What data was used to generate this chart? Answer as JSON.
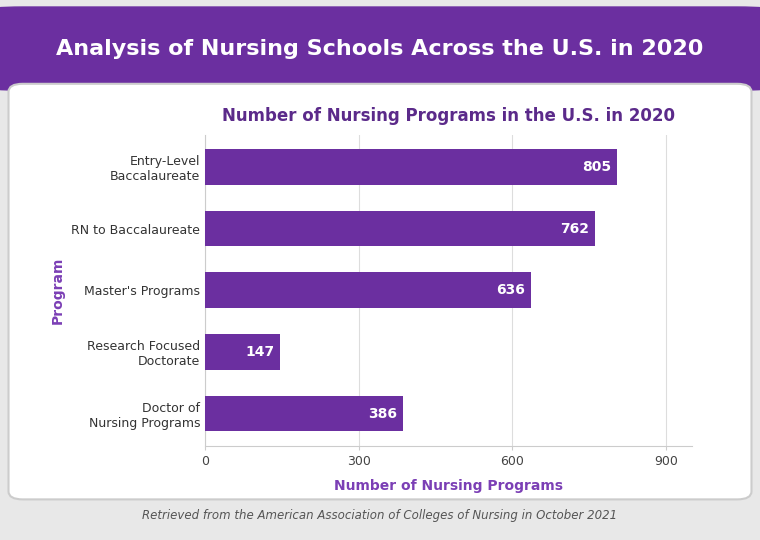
{
  "title_banner": "Analysis of Nursing Schools Across the U.S. in 2020",
  "chart_title": "Number of Nursing Programs in the U.S. in 2020",
  "categories": [
    "Entry-Level\nBaccalaureate",
    "RN to Baccalaureate",
    "Master's Programs",
    "Research Focused\nDoctorate",
    "Doctor of\nNursing Programs"
  ],
  "values": [
    805,
    762,
    636,
    147,
    386
  ],
  "bar_color": "#6B2FA0",
  "banner_color": "#6B2FA0",
  "xlabel": "Number of Nursing Programs",
  "ylabel": "Program",
  "label_color": "#ffffff",
  "axis_label_color": "#7B3FB5",
  "title_color": "#5B2A8A",
  "caption": "Retrieved from the American Association of Colleges of Nursing in October 2021",
  "xlim": [
    0,
    950
  ],
  "xticks": [
    0,
    300,
    600,
    900
  ],
  "background_color": "#e8e8e8",
  "card_color": "#ffffff",
  "bar_label_fontsize": 10,
  "title_fontsize": 12,
  "axis_label_fontsize": 10,
  "tick_fontsize": 9,
  "caption_fontsize": 8.5,
  "banner_text_color": "#ffffff",
  "banner_fontsize": 16
}
